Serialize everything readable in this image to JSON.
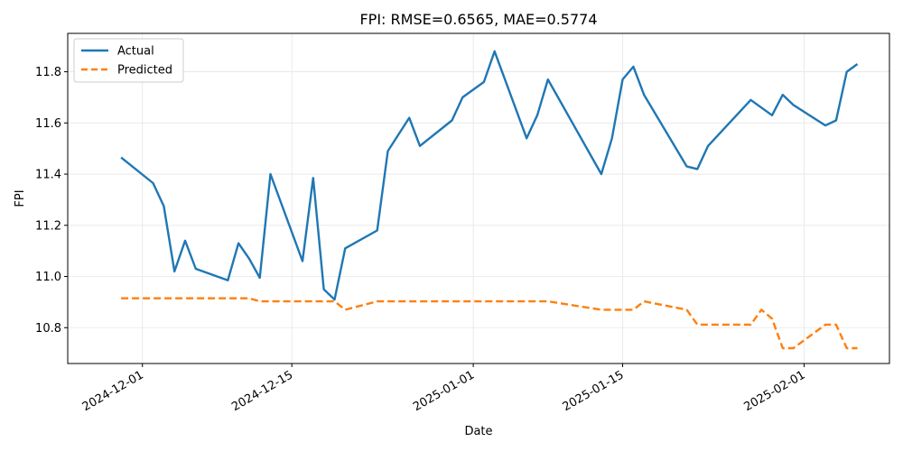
{
  "chart_data": {
    "type": "line",
    "title": "FPI: RMSE=0.6565, MAE=0.5774",
    "xlabel": "Date",
    "ylabel": "FPI",
    "xlim": [
      "2024-11-24",
      "2025-02-09"
    ],
    "ylim": [
      10.66,
      11.95
    ],
    "x_ticks": [
      "2024-12-01",
      "2024-12-15",
      "2025-01-01",
      "2025-01-15",
      "2025-02-01"
    ],
    "y_ticks": [
      10.8,
      11.0,
      11.2,
      11.4,
      11.6,
      11.8
    ],
    "y_tick_labels": [
      "10.8",
      "11.0",
      "11.2",
      "11.4",
      "11.6",
      "11.8"
    ],
    "grid": true,
    "legend_position": "top-left",
    "colors": {
      "actual": "#1f77b4",
      "predicted": "#ff7f0e"
    },
    "series": [
      {
        "name": "Actual",
        "style": "solid",
        "points": [
          [
            "2024-11-29",
            11.465
          ],
          [
            "2024-12-02",
            11.365
          ],
          [
            "2024-12-03",
            11.275
          ],
          [
            "2024-12-04",
            11.02
          ],
          [
            "2024-12-05",
            11.14
          ],
          [
            "2024-12-06",
            11.03
          ],
          [
            "2024-12-09",
            10.985
          ],
          [
            "2024-12-10",
            11.13
          ],
          [
            "2024-12-11",
            11.07
          ],
          [
            "2024-12-12",
            10.995
          ],
          [
            "2024-12-13",
            11.4
          ],
          [
            "2024-12-16",
            11.06
          ],
          [
            "2024-12-17",
            11.385
          ],
          [
            "2024-12-18",
            10.95
          ],
          [
            "2024-12-19",
            10.91
          ],
          [
            "2024-12-20",
            11.11
          ],
          [
            "2024-12-23",
            11.18
          ],
          [
            "2024-12-24",
            11.49
          ],
          [
            "2024-12-26",
            11.62
          ],
          [
            "2024-12-27",
            11.51
          ],
          [
            "2024-12-30",
            11.61
          ],
          [
            "2024-12-31",
            11.7
          ],
          [
            "2025-01-02",
            11.76
          ],
          [
            "2025-01-03",
            11.88
          ],
          [
            "2025-01-06",
            11.54
          ],
          [
            "2025-01-07",
            11.63
          ],
          [
            "2025-01-08",
            11.77
          ],
          [
            "2025-01-13",
            11.4
          ],
          [
            "2025-01-14",
            11.54
          ],
          [
            "2025-01-15",
            11.77
          ],
          [
            "2025-01-16",
            11.82
          ],
          [
            "2025-01-17",
            11.71
          ],
          [
            "2025-01-21",
            11.43
          ],
          [
            "2025-01-22",
            11.42
          ],
          [
            "2025-01-23",
            11.51
          ],
          [
            "2025-01-27",
            11.69
          ],
          [
            "2025-01-29",
            11.63
          ],
          [
            "2025-01-30",
            11.71
          ],
          [
            "2025-01-31",
            11.67
          ],
          [
            "2025-02-03",
            11.59
          ],
          [
            "2025-02-04",
            11.61
          ],
          [
            "2025-02-05",
            11.8
          ],
          [
            "2025-02-06",
            11.83
          ]
        ]
      },
      {
        "name": "Predicted",
        "style": "dashed",
        "points": [
          [
            "2024-11-29",
            10.915
          ],
          [
            "2024-12-02",
            10.915
          ],
          [
            "2024-12-03",
            10.915
          ],
          [
            "2024-12-04",
            10.915
          ],
          [
            "2024-12-05",
            10.915
          ],
          [
            "2024-12-06",
            10.915
          ],
          [
            "2024-12-09",
            10.915
          ],
          [
            "2024-12-10",
            10.915
          ],
          [
            "2024-12-11",
            10.915
          ],
          [
            "2024-12-12",
            10.903
          ],
          [
            "2024-12-13",
            10.903
          ],
          [
            "2024-12-16",
            10.903
          ],
          [
            "2024-12-17",
            10.903
          ],
          [
            "2024-12-18",
            10.903
          ],
          [
            "2024-12-19",
            10.903
          ],
          [
            "2024-12-20",
            10.87
          ],
          [
            "2024-12-23",
            10.903
          ],
          [
            "2024-12-24",
            10.903
          ],
          [
            "2024-12-26",
            10.903
          ],
          [
            "2024-12-27",
            10.903
          ],
          [
            "2024-12-30",
            10.903
          ],
          [
            "2024-12-31",
            10.903
          ],
          [
            "2025-01-02",
            10.903
          ],
          [
            "2025-01-03",
            10.903
          ],
          [
            "2025-01-06",
            10.903
          ],
          [
            "2025-01-07",
            10.903
          ],
          [
            "2025-01-08",
            10.903
          ],
          [
            "2025-01-13",
            10.87
          ],
          [
            "2025-01-14",
            10.87
          ],
          [
            "2025-01-15",
            10.87
          ],
          [
            "2025-01-16",
            10.87
          ],
          [
            "2025-01-17",
            10.903
          ],
          [
            "2025-01-21",
            10.87
          ],
          [
            "2025-01-22",
            10.812
          ],
          [
            "2025-01-23",
            10.812
          ],
          [
            "2025-01-27",
            10.812
          ],
          [
            "2025-01-28",
            10.87
          ],
          [
            "2025-01-29",
            10.835
          ],
          [
            "2025-01-30",
            10.72
          ],
          [
            "2025-01-31",
            10.72
          ],
          [
            "2025-02-03",
            10.812
          ],
          [
            "2025-02-04",
            10.812
          ],
          [
            "2025-02-05",
            10.72
          ],
          [
            "2025-02-06",
            10.72
          ]
        ]
      }
    ]
  }
}
